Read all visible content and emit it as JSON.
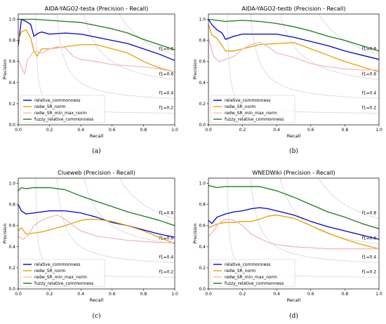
{
  "chart_data": [
    {
      "type": "line",
      "title": "AIDA-YAGO2-testa (Precision - Recall)",
      "caption": "(a)",
      "xlabel": "Recall",
      "ylabel": "Precision",
      "xlim": [
        0,
        1
      ],
      "ylim": [
        0,
        1.05
      ],
      "xticks": [
        "0.0",
        "0.2",
        "0.4",
        "0.6",
        "0.8",
        "1.0"
      ],
      "yticks": [
        "0.0",
        "0.2",
        "0.4",
        "0.6",
        "0.8",
        "1.0"
      ],
      "f1_labels": [
        "f1=0.8",
        "f1=0.6",
        "f1=0.4",
        "f1=0.2"
      ],
      "legend": "lower-left",
      "series": [
        {
          "name": "relative_commonness",
          "color": "#0000cc",
          "x": [
            0.0,
            0.02,
            0.05,
            0.08,
            0.1,
            0.13,
            0.15,
            0.2,
            0.3,
            0.4,
            0.5,
            0.6,
            0.7,
            0.8,
            0.9,
            1.0
          ],
          "y": [
            0.75,
            1.0,
            0.98,
            0.95,
            0.84,
            0.87,
            0.88,
            0.86,
            0.87,
            0.86,
            0.83,
            0.8,
            0.77,
            0.72,
            0.67,
            0.61
          ]
        },
        {
          "name": "redw_SR_norm",
          "color": "#e6a000",
          "x": [
            0.0,
            0.02,
            0.05,
            0.08,
            0.1,
            0.12,
            0.15,
            0.2,
            0.3,
            0.4,
            0.5,
            0.6,
            0.7,
            0.8,
            0.9,
            1.0
          ],
          "y": [
            0.8,
            0.88,
            0.9,
            0.82,
            0.7,
            0.65,
            0.72,
            0.72,
            0.74,
            0.76,
            0.76,
            0.72,
            0.68,
            0.6,
            0.54,
            0.5
          ]
        },
        {
          "name": "redw_SR_min_max_norm",
          "color": "#f4b8c0",
          "x": [
            0.0,
            0.02,
            0.04,
            0.06,
            0.1,
            0.15,
            0.2,
            0.25,
            0.3,
            0.35,
            0.4,
            0.5,
            0.6,
            0.7,
            0.8,
            0.9,
            1.0
          ],
          "y": [
            0.62,
            0.55,
            0.48,
            0.62,
            0.7,
            0.68,
            0.72,
            0.74,
            0.73,
            0.65,
            0.62,
            0.6,
            0.57,
            0.56,
            0.55,
            0.53,
            0.5
          ]
        },
        {
          "name": "fuzzy_relative_commonness",
          "color": "#1a7a1a",
          "x": [
            0.0,
            0.1,
            0.2,
            0.3,
            0.4,
            0.5,
            0.6,
            0.7,
            0.8,
            0.9,
            1.0
          ],
          "y": [
            1.0,
            1.0,
            0.99,
            0.98,
            0.97,
            0.94,
            0.91,
            0.87,
            0.81,
            0.76,
            0.71
          ]
        }
      ]
    },
    {
      "type": "line",
      "title": "AIDA-YAGO2-testb (Precision - Recall)",
      "caption": "(b)",
      "xlabel": "Recall",
      "ylabel": "Precision",
      "xlim": [
        0,
        1
      ],
      "ylim": [
        0,
        1.05
      ],
      "xticks": [
        "0.0",
        "0.2",
        "0.4",
        "0.6",
        "0.8",
        "1.0"
      ],
      "yticks": [
        "0.0",
        "0.2",
        "0.4",
        "0.6",
        "0.8",
        "1.0"
      ],
      "f1_labels": [
        "f1=0.8",
        "f1=0.6",
        "f1=0.4",
        "f1=0.2"
      ],
      "legend": "lower-left",
      "series": [
        {
          "name": "relative_commonness",
          "color": "#0000cc",
          "x": [
            0.0,
            0.02,
            0.05,
            0.08,
            0.1,
            0.15,
            0.2,
            0.3,
            0.4,
            0.5,
            0.6,
            0.7,
            0.8,
            0.9,
            1.0
          ],
          "y": [
            1.0,
            0.95,
            0.9,
            0.87,
            0.81,
            0.84,
            0.86,
            0.86,
            0.86,
            0.83,
            0.79,
            0.75,
            0.7,
            0.66,
            0.62
          ]
        },
        {
          "name": "redw_SR_norm",
          "color": "#e6a000",
          "x": [
            0.0,
            0.02,
            0.05,
            0.08,
            0.1,
            0.15,
            0.2,
            0.3,
            0.4,
            0.5,
            0.6,
            0.7,
            0.8,
            0.9,
            1.0
          ],
          "y": [
            0.95,
            0.85,
            0.82,
            0.75,
            0.7,
            0.7,
            0.72,
            0.76,
            0.77,
            0.78,
            0.72,
            0.66,
            0.6,
            0.55,
            0.5
          ]
        },
        {
          "name": "redw_SR_min_max_norm",
          "color": "#f4b8c0",
          "x": [
            0.0,
            0.03,
            0.06,
            0.1,
            0.15,
            0.2,
            0.25,
            0.3,
            0.35,
            0.4,
            0.5,
            0.6,
            0.7,
            0.8,
            0.9,
            1.0
          ],
          "y": [
            0.82,
            0.65,
            0.6,
            0.62,
            0.65,
            0.72,
            0.76,
            0.78,
            0.74,
            0.68,
            0.64,
            0.58,
            0.55,
            0.53,
            0.52,
            0.52
          ]
        },
        {
          "name": "fuzzy_relative_commonness",
          "color": "#1a7a1a",
          "x": [
            0.0,
            0.1,
            0.2,
            0.3,
            0.4,
            0.5,
            0.6,
            0.7,
            0.8,
            0.9,
            1.0
          ],
          "y": [
            1.0,
            0.98,
            0.99,
            0.98,
            0.96,
            0.93,
            0.89,
            0.84,
            0.8,
            0.75,
            0.7
          ]
        }
      ]
    },
    {
      "type": "line",
      "title": "Clueweb (Precision - Recall)",
      "caption": "(c)",
      "xlabel": "Recall",
      "ylabel": "Precision",
      "xlim": [
        0,
        1
      ],
      "ylim": [
        0,
        1.05
      ],
      "xticks": [
        "0.0",
        "0.2",
        "0.4",
        "0.6",
        "0.8",
        "1.0"
      ],
      "yticks": [
        "0.0",
        "0.2",
        "0.4",
        "0.6",
        "0.8",
        "1.0"
      ],
      "f1_labels": [
        "f1=0.8",
        "f1=0.6",
        "f1=0.4",
        "f1=0.2"
      ],
      "legend": "lower-left",
      "series": [
        {
          "name": "relative_commonness",
          "color": "#0000cc",
          "x": [
            0.0,
            0.02,
            0.05,
            0.1,
            0.15,
            0.2,
            0.3,
            0.4,
            0.5,
            0.6,
            0.7,
            0.8,
            0.9,
            1.0
          ],
          "y": [
            0.8,
            0.74,
            0.71,
            0.72,
            0.73,
            0.74,
            0.74,
            0.72,
            0.68,
            0.63,
            0.6,
            0.56,
            0.52,
            0.49
          ]
        },
        {
          "name": "redw_SR_norm",
          "color": "#e6a000",
          "x": [
            0.0,
            0.02,
            0.05,
            0.1,
            0.15,
            0.2,
            0.3,
            0.4,
            0.45,
            0.5,
            0.6,
            0.7,
            0.8,
            0.9,
            1.0
          ],
          "y": [
            0.55,
            0.58,
            0.52,
            0.53,
            0.54,
            0.56,
            0.6,
            0.65,
            0.66,
            0.66,
            0.64,
            0.6,
            0.55,
            0.49,
            0.43
          ]
        },
        {
          "name": "redw_SR_min_max_norm",
          "color": "#f4b8c0",
          "x": [
            0.0,
            0.03,
            0.06,
            0.1,
            0.15,
            0.2,
            0.25,
            0.3,
            0.35,
            0.4,
            0.5,
            0.6,
            0.7,
            0.8,
            0.9,
            1.0
          ],
          "y": [
            0.5,
            0.47,
            0.5,
            0.6,
            0.65,
            0.68,
            0.7,
            0.66,
            0.6,
            0.55,
            0.5,
            0.48,
            0.46,
            0.45,
            0.44,
            0.44
          ]
        },
        {
          "name": "fuzzy_relative_commonness",
          "color": "#1a7a1a",
          "x": [
            0.0,
            0.02,
            0.05,
            0.1,
            0.2,
            0.3,
            0.4,
            0.5,
            0.6,
            0.7,
            0.8,
            0.9,
            1.0
          ],
          "y": [
            0.93,
            0.96,
            0.95,
            0.96,
            0.96,
            0.94,
            0.88,
            0.83,
            0.78,
            0.73,
            0.69,
            0.65,
            0.6
          ]
        }
      ]
    },
    {
      "type": "line",
      "title": "WNEDWiki (Precision - Recall)",
      "caption": "(d)",
      "xlabel": "Recall",
      "ylabel": "Precision",
      "xlim": [
        0,
        1
      ],
      "ylim": [
        0,
        1.05
      ],
      "xticks": [
        "0.0",
        "0.2",
        "0.4",
        "0.6",
        "0.8",
        "1.0"
      ],
      "yticks": [
        "0.0",
        "0.2",
        "0.4",
        "0.6",
        "0.8",
        "1.0"
      ],
      "f1_labels": [
        "f1=0.8",
        "f1=0.6",
        "f1=0.4",
        "f1=0.2"
      ],
      "legend": "lower-left",
      "series": [
        {
          "name": "relative_commonness",
          "color": "#0000cc",
          "x": [
            0.0,
            0.02,
            0.05,
            0.1,
            0.15,
            0.2,
            0.25,
            0.3,
            0.35,
            0.4,
            0.5,
            0.6,
            0.7,
            0.8,
            0.9,
            1.0
          ],
          "y": [
            0.65,
            0.62,
            0.68,
            0.71,
            0.73,
            0.74,
            0.76,
            0.77,
            0.76,
            0.74,
            0.7,
            0.64,
            0.59,
            0.55,
            0.51,
            0.47
          ]
        },
        {
          "name": "redw_SR_norm",
          "color": "#e6a000",
          "x": [
            0.0,
            0.03,
            0.06,
            0.1,
            0.15,
            0.2,
            0.25,
            0.3,
            0.35,
            0.4,
            0.5,
            0.6,
            0.7,
            0.8,
            0.9,
            1.0
          ],
          "y": [
            0.58,
            0.6,
            0.62,
            0.63,
            0.63,
            0.64,
            0.64,
            0.66,
            0.69,
            0.7,
            0.67,
            0.6,
            0.53,
            0.47,
            0.42,
            0.38
          ]
        },
        {
          "name": "redw_SR_min_max_norm",
          "color": "#f4b8c0",
          "x": [
            0.0,
            0.03,
            0.06,
            0.1,
            0.15,
            0.2,
            0.25,
            0.3,
            0.35,
            0.4,
            0.5,
            0.6,
            0.7,
            0.8,
            0.9,
            1.0
          ],
          "y": [
            0.5,
            0.55,
            0.62,
            0.66,
            0.65,
            0.6,
            0.52,
            0.48,
            0.44,
            0.42,
            0.4,
            0.39,
            0.38,
            0.38,
            0.38,
            0.38
          ]
        },
        {
          "name": "fuzzy_relative_commonness",
          "color": "#1a7a1a",
          "x": [
            0.0,
            0.05,
            0.1,
            0.2,
            0.3,
            0.4,
            0.5,
            0.6,
            0.7,
            0.8,
            0.9,
            1.0
          ],
          "y": [
            0.98,
            0.96,
            0.97,
            0.97,
            0.97,
            0.93,
            0.87,
            0.8,
            0.73,
            0.68,
            0.62,
            0.57
          ]
        }
      ]
    }
  ]
}
